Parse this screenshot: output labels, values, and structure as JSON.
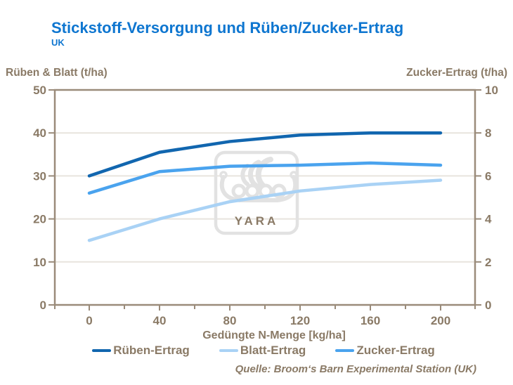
{
  "header": {
    "title": "Stickstoff-Versorgung und Rüben/Zucker-Ertrag",
    "subtitle": "UK"
  },
  "axes": {
    "left_title": "Rüben & Blatt (t/ha)",
    "right_title": "Zucker-Ertrag (t/ha)",
    "x_title": "Gedüngte N-Menge [kg/ha]"
  },
  "watermark": {
    "text": "YARA",
    "icon": "viking-ship-logo"
  },
  "source": "Quelle: Broom‘s Barn Experimental Station (UK)",
  "colors": {
    "title_blue": "#0e76d0",
    "text_brown": "#8a7a66",
    "axis_brown": "#9a8b7a",
    "gridline": "#e8e4de",
    "watermark_gray": "#e2e2e2",
    "rueben_line": "#1166af",
    "blatt_line": "#a9d2f5",
    "zucker_line": "#4aa3ee"
  },
  "legend": {
    "items": [
      {
        "label": "Rüben-Ertrag",
        "color": "#1166af"
      },
      {
        "label": "Blatt-Ertrag",
        "color": "#a9d2f5"
      },
      {
        "label": "Zucker-Ertrag",
        "color": "#4aa3ee"
      }
    ]
  },
  "chart_data": {
    "type": "line",
    "title": "Stickstoff-Versorgung und Rüben/Zucker-Ertrag (UK)",
    "xlabel": "Gedüngte N-Menge [kg/ha]",
    "x": [
      0,
      40,
      80,
      120,
      160,
      200
    ],
    "x_minor_step": 20,
    "xlim": [
      -20,
      220
    ],
    "grid": "horizontal",
    "legend_position": "bottom",
    "left_axis": {
      "label": "Rüben & Blatt (t/ha)",
      "range": [
        0,
        50
      ],
      "ticks": [
        0,
        10,
        20,
        30,
        40,
        50
      ]
    },
    "right_axis": {
      "label": "Zucker-Ertrag (t/ha)",
      "range": [
        0,
        10
      ],
      "ticks": [
        0,
        2,
        4,
        6,
        8,
        10
      ]
    },
    "series": [
      {
        "name": "Rüben-Ertrag",
        "axis": "left",
        "color": "#1166af",
        "values": [
          30,
          35.5,
          38,
          39.5,
          40,
          40
        ]
      },
      {
        "name": "Blatt-Ertrag",
        "axis": "left",
        "color": "#a9d2f5",
        "values": [
          15,
          20,
          24,
          26.5,
          28,
          29
        ]
      },
      {
        "name": "Zucker-Ertrag",
        "axis": "right",
        "color": "#4aa3ee",
        "values": [
          5.2,
          6.2,
          6.45,
          6.5,
          6.6,
          6.5
        ]
      }
    ]
  }
}
